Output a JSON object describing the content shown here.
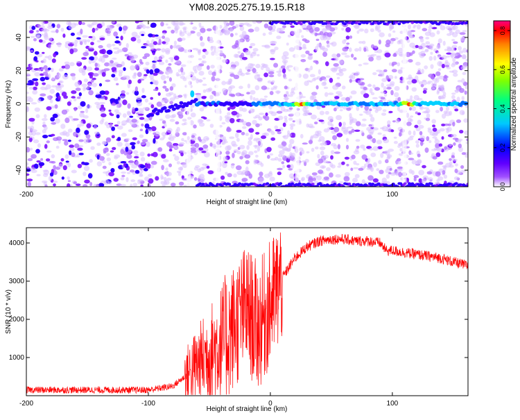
{
  "title": "YM08.2025.275.19.15.R18",
  "chart_data": [
    {
      "type": "heatmap",
      "xlabel": "Height of straight line (km)",
      "ylabel": "Frequency (Hz)",
      "xlim": [
        -200,
        162
      ],
      "ylim": [
        -50,
        50
      ],
      "x_ticks": [
        -200,
        -100,
        0,
        100
      ],
      "y_ticks": [
        -40,
        -20,
        0,
        20,
        40
      ],
      "colorbar": {
        "label": "Normalized spectral amplitude",
        "range": [
          0,
          0.85
        ],
        "ticks": [
          0.0,
          0.2,
          0.4,
          0.6,
          0.8
        ],
        "tick_labels": [
          "0.0",
          "0.2",
          "0.4",
          "0.6",
          "0.8"
        ],
        "colormap": [
          "#ffffff",
          "#7700ff",
          "#0000ff",
          "#00c0ff",
          "#00ff80",
          "#80ff00",
          "#ffff00",
          "#ff8000",
          "#ff0000",
          "#ff0080"
        ]
      },
      "features": [
        {
          "name": "carrier line",
          "x_start": -100,
          "x_end": 162,
          "frequency": 0,
          "peak_amplitude": 0.8,
          "peak_x": [
            25,
            113
          ]
        },
        {
          "name": "upper edge band",
          "x_start": 0,
          "x_end": 162,
          "frequency": 49
        },
        {
          "name": "lower edge band",
          "x_start": -60,
          "x_end": 162,
          "frequency": -49
        }
      ]
    },
    {
      "type": "line",
      "xlabel": "Height of straight line (km)",
      "ylabel": "SNR (10 * v/v)",
      "xlim": [
        -200,
        162
      ],
      "ylim": [
        0,
        4400
      ],
      "x_ticks": [
        -200,
        -100,
        0,
        100
      ],
      "y_ticks": [
        1000,
        2000,
        3000,
        4000
      ],
      "color": "#ff0000",
      "series": [
        {
          "name": "SNR",
          "x": [
            -200,
            -150,
            -100,
            -80,
            -70,
            -60,
            -50,
            -40,
            -30,
            -20,
            -10,
            0,
            10,
            20,
            30,
            40,
            50,
            60,
            70,
            80,
            90,
            95,
            100,
            110,
            120,
            130,
            140,
            150,
            162
          ],
          "y": [
            150,
            150,
            150,
            250,
            500,
            800,
            1100,
            1400,
            1800,
            2300,
            1800,
            2400,
            3100,
            3600,
            3900,
            4050,
            4100,
            4100,
            4050,
            4050,
            4000,
            3800,
            3800,
            3750,
            3700,
            3650,
            3600,
            3500,
            3400
          ]
        }
      ]
    }
  ]
}
